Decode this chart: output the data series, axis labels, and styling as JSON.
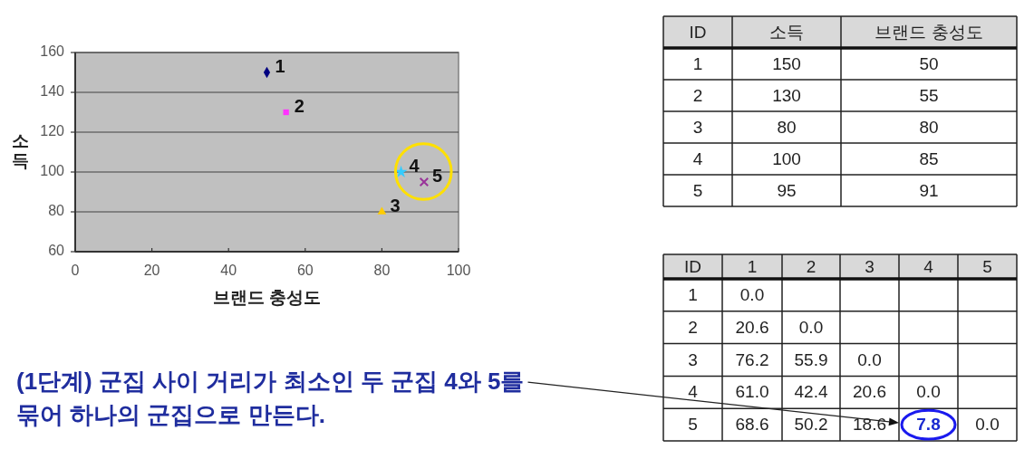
{
  "chart_data": [
    {
      "type": "scatter",
      "xlabel": "브랜드 충성도",
      "ylabel": "소득",
      "xlim": [
        0,
        100
      ],
      "xticks": [
        0,
        20,
        40,
        60,
        80,
        100
      ],
      "ylim": [
        60,
        160
      ],
      "yticks": [
        60,
        80,
        100,
        120,
        140,
        160
      ],
      "grid": "y",
      "series": [
        {
          "name": "1",
          "color": "#000080",
          "marker": "diamond",
          "x": [
            50
          ],
          "values": [
            150
          ]
        },
        {
          "name": "2",
          "color": "#ff33ff",
          "marker": "square",
          "x": [
            55
          ],
          "values": [
            130
          ]
        },
        {
          "name": "3",
          "color": "#ffcc00",
          "marker": "triangle",
          "x": [
            80
          ],
          "values": [
            80
          ]
        },
        {
          "name": "4",
          "color": "#33ccff",
          "marker": "star",
          "x": [
            85
          ],
          "values": [
            100
          ]
        },
        {
          "name": "5",
          "color": "#993399",
          "marker": "cross",
          "x": [
            91
          ],
          "values": [
            95
          ]
        }
      ]
    },
    {
      "type": "heatmap",
      "ylabel": "ID",
      "categories": [
        "소득",
        "브랜드 충성도"
      ],
      "y_categories": [
        "1",
        "2",
        "3",
        "4",
        "5"
      ],
      "cells": [
        [
          150,
          50
        ],
        [
          130,
          55
        ],
        [
          80,
          80
        ],
        [
          100,
          85
        ],
        [
          95,
          91
        ]
      ],
      "data_labels": true
    },
    {
      "type": "heatmap",
      "ylabel": "ID",
      "categories": [
        "1",
        "2",
        "3",
        "4",
        "5"
      ],
      "y_categories": [
        "1",
        "2",
        "3",
        "4",
        "5"
      ],
      "cells": [
        [
          0,
          null,
          null,
          null,
          null
        ],
        [
          20.6,
          0,
          null,
          null,
          null
        ],
        [
          76.2,
          55.9,
          0,
          null,
          null
        ],
        [
          61,
          42.4,
          20.6,
          0,
          null
        ],
        [
          68.6,
          50.2,
          18.6,
          7.8,
          0
        ]
      ],
      "cell_labels": [
        [
          "0.0",
          null,
          null,
          null,
          null
        ],
        [
          "20.6",
          "0.0",
          null,
          null,
          null
        ],
        [
          "76.2",
          "55.9",
          "0.0",
          null,
          null
        ],
        [
          "61.0",
          "42.4",
          "20.6",
          "0.0",
          null
        ],
        [
          "68.6",
          "50.2",
          "18.6",
          "7.8",
          "0.0"
        ]
      ],
      "data_labels": true,
      "annotations": [
        "(1단계) 군집 사이 거리가 최소인 두 군집 4와 5를 묶어 하나의 군집으로 만든다."
      ]
    }
  ]
}
